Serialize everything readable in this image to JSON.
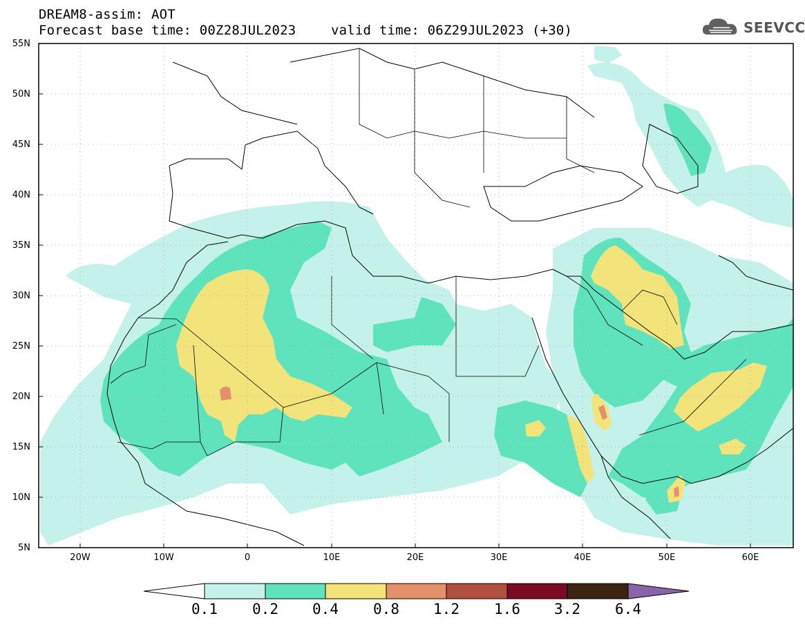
{
  "title": {
    "line1": "DREAM8-assim: AOT",
    "line2": "Forecast base time: 00Z28JUL2023",
    "valid": "valid time: 06Z29JUL2023 (+30)"
  },
  "logo": {
    "text": "SEEVCCC",
    "icon": "cloud-icon"
  },
  "axes": {
    "lat_labels": [
      "55N",
      "50N",
      "45N",
      "40N",
      "35N",
      "30N",
      "25N",
      "20N",
      "15N",
      "10N",
      "5N"
    ],
    "lon_labels": [
      "20W",
      "10W",
      "0",
      "10E",
      "20E",
      "30E",
      "40E",
      "50E",
      "60E"
    ]
  },
  "colorbar": {
    "labels": [
      "0.1",
      "0.2",
      "0.4",
      "0.8",
      "1.2",
      "1.6",
      "3.2",
      "6.4"
    ],
    "colors": [
      "#ffffff",
      "#c4f2ea",
      "#5ee3bd",
      "#f2e47a",
      "#e3906b",
      "#b0503e",
      "#7b0a24",
      "#3b2412",
      "#8a63a8"
    ]
  },
  "field_colors": {
    "c1": "#c4f2ea",
    "c2": "#5ee3bd",
    "c3": "#f2e47a",
    "c4": "#e3906b"
  }
}
